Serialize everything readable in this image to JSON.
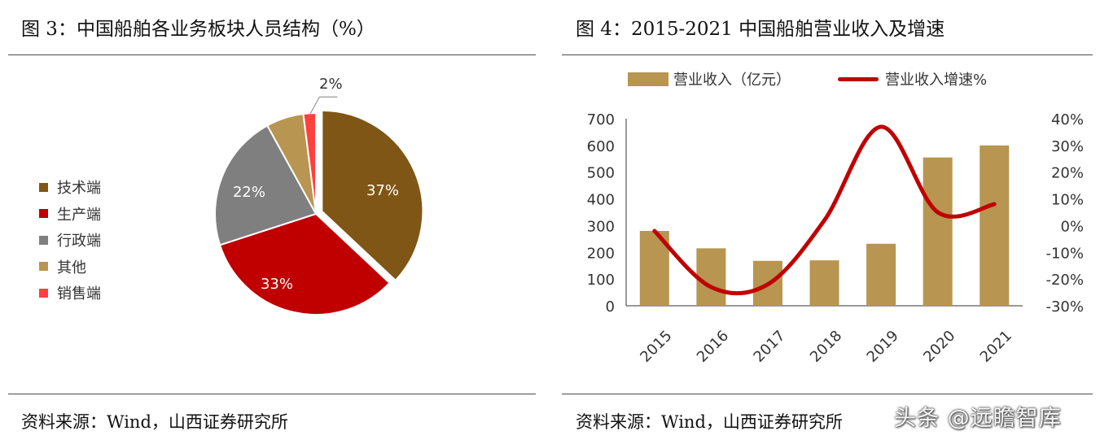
{
  "left": {
    "title": "图 3：中国船舶各业务板块人员结构（%）",
    "source": "资料来源：Wind，山西证券研究所"
  },
  "right": {
    "title": "图 4：2015-2021 中国船舶营业收入及增速",
    "source": "资料来源：Wind，山西证券研究所"
  },
  "watermark": "头条 @远瞻智库",
  "chart_data": [
    {
      "type": "pie",
      "title": "",
      "legend_placement": "left",
      "slices": [
        {
          "label": "技术端",
          "value": 37,
          "display": "37%",
          "color": "#7F5615",
          "exploded": true
        },
        {
          "label": "生产端",
          "value": 33,
          "display": "33%",
          "color": "#C00000"
        },
        {
          "label": "行政端",
          "value": 22,
          "display": "22%",
          "color": "#7F7F7F"
        },
        {
          "label": "其他",
          "value": 6,
          "display": "",
          "color": "#B89550"
        },
        {
          "label": "销售端",
          "value": 2,
          "display": "2%",
          "color": "#FF4040"
        }
      ]
    },
    {
      "type": "bar",
      "title": "",
      "legend_placement": "top",
      "categories": [
        "2015",
        "2016",
        "2017",
        "2018",
        "2019",
        "2020",
        "2021"
      ],
      "series": [
        {
          "name": "营业收入（亿元）",
          "type": "bar",
          "axis": "left",
          "color": "#B89550",
          "values": [
            280,
            215,
            168,
            170,
            232,
            555,
            600
          ]
        },
        {
          "name": "营业收入增速%",
          "type": "line",
          "axis": "right",
          "color": "#C00000",
          "values": [
            -2,
            -23,
            -22,
            2,
            37,
            5,
            8
          ]
        }
      ],
      "y_left": {
        "lim": [
          0,
          700
        ],
        "ticks": [
          "0",
          "100",
          "200",
          "300",
          "400",
          "500",
          "600",
          "700"
        ]
      },
      "y_right": {
        "lim": [
          -30,
          40
        ],
        "ticks": [
          "-30%",
          "-20%",
          "-10%",
          "0%",
          "10%",
          "20%",
          "30%",
          "40%"
        ]
      },
      "grid": false
    }
  ]
}
